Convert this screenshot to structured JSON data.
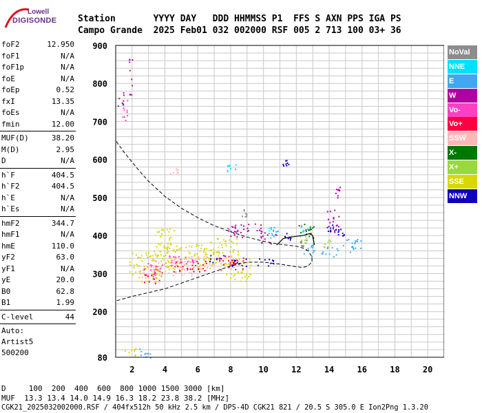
{
  "logo": {
    "line1": "Lowell",
    "line2": "DIGISONDE"
  },
  "header": {
    "row1": "Station       YYYY DAY   DDD HHMMSS P1  FFS S AXN PPS IGA PS",
    "row2": "Campo Grande  2025 Feb01 032 002000 RSF 005 2 713 100 03+ 36"
  },
  "params": [
    {
      "group": [
        [
          "foF2",
          "12.950"
        ],
        [
          "foF1",
          "N/A"
        ],
        [
          "foF1p",
          "N/A"
        ],
        [
          "foE",
          "N/A"
        ],
        [
          "foEp",
          "0.52"
        ],
        [
          "fxI",
          "13.35"
        ],
        [
          "foEs",
          "N/A"
        ],
        [
          "fmin",
          "12.00"
        ]
      ]
    },
    {
      "group": [
        [
          "MUF(D)",
          "38.20"
        ],
        [
          "M(D)",
          "2.95"
        ],
        [
          "D",
          "N/A"
        ]
      ]
    },
    {
      "group": [
        [
          "h`F",
          "404.5"
        ],
        [
          "h`F2",
          "404.5"
        ],
        [
          "h`E",
          "N/A"
        ],
        [
          "h`Es",
          "N/A"
        ]
      ]
    },
    {
      "group": [
        [
          "hmF2",
          "344.7"
        ],
        [
          "hmF1",
          "N/A"
        ],
        [
          "hmE",
          "110.0"
        ],
        [
          "yF2",
          "63.0"
        ],
        [
          "yF1",
          "N/A"
        ],
        [
          "yE",
          "20.0"
        ],
        [
          "B0",
          "62.8"
        ],
        [
          "B1",
          "1.99"
        ]
      ]
    },
    {
      "group": [
        [
          "C-level",
          "44"
        ]
      ]
    }
  ],
  "auto": [
    "Auto:",
    "Artist5",
    "500200"
  ],
  "legend": [
    {
      "label": "NoVal",
      "color": "#8c8c8c"
    },
    {
      "label": "NNE",
      "color": "#00e0ff"
    },
    {
      "label": "E",
      "color": "#3fa8f0"
    },
    {
      "label": "W",
      "color": "#b000a0"
    },
    {
      "label": "Vo-",
      "color": "#ff40c0"
    },
    {
      "label": "Vo+",
      "color": "#ff0040"
    },
    {
      "label": "SSW",
      "color": "#ffb8b8"
    },
    {
      "label": "X-",
      "color": "#007800"
    },
    {
      "label": "X+",
      "color": "#9ad840"
    },
    {
      "label": "SSE",
      "color": "#d8d800"
    },
    {
      "label": "NNW",
      "color": "#1000c0"
    }
  ],
  "footer": {
    "d_row": "D     100  200  400  600  800 1000 1500 3000 [km]",
    "muf_row": "MUF  13.3 13.4 14.0 14.9 16.3 18.2 23.8 38.2 [MHz]",
    "info_row": "CGK21_2025032002000.RSF / 404fx512h 50 kHz 2.5 km / DPS-4D CGK21 821 / 20.5 S 305.0 E Ion2Png 1.3.20"
  },
  "chart_data": {
    "type": "scatter",
    "xlabel": "",
    "ylabel": "",
    "xlim": [
      1,
      21
    ],
    "ylim": [
      80,
      900
    ],
    "x_ticks": [
      2,
      4,
      6,
      8,
      10,
      12,
      14,
      16,
      18,
      20
    ],
    "y_ticks": [
      80,
      200,
      300,
      400,
      500,
      600,
      700,
      800,
      900
    ],
    "grid": true,
    "profile_curve": {
      "style": "dashed",
      "x": [
        0.5,
        1.0,
        1.5,
        2.0,
        2.5,
        3.0,
        4.0,
        5.0,
        6.0,
        7.0,
        8.0,
        9.0,
        10.0,
        11.0,
        12.0,
        12.4,
        12.7,
        12.95,
        12.95,
        12.7,
        12.4,
        12.0,
        11.0,
        10.0,
        9.0,
        8.0,
        7.0,
        6.0,
        5.0,
        4.0,
        3.0,
        2.0,
        1.0,
        0.6
      ],
      "y": [
        705,
        650,
        620,
        593,
        567,
        543,
        503,
        472,
        447,
        426,
        410,
        396,
        385,
        377,
        372,
        367,
        360,
        345,
        330,
        320,
        316,
        318,
        325,
        330,
        330,
        320,
        305,
        290,
        275,
        260,
        250,
        240,
        228,
        222
      ]
    },
    "trace_curve": {
      "style": "solid",
      "x": [
        10.8,
        11.2,
        11.6,
        12.0,
        12.4,
        12.8,
        13.0,
        13.1
      ],
      "y": [
        375,
        392,
        396,
        398,
        400,
        405,
        400,
        375
      ]
    },
    "series": [
      {
        "name": "SSE",
        "color": "#d8d800",
        "clusters": [
          [
            3.0,
            320,
            1.2,
            40
          ],
          [
            4.0,
            380,
            0.6,
            40
          ],
          [
            5.5,
            345,
            1.5,
            35
          ],
          [
            7.5,
            360,
            1.0,
            35
          ],
          [
            8.5,
            310,
            0.8,
            30
          ],
          [
            1.8,
            95,
            0.4,
            10
          ]
        ]
      },
      {
        "name": "SSW",
        "color": "#ffb8b8",
        "clusters": [
          [
            3.0,
            300,
            0.7,
            25
          ],
          [
            4.5,
            320,
            1.4,
            25
          ],
          [
            6.0,
            330,
            1.0,
            20
          ],
          [
            4.5,
            570,
            0.3,
            8
          ]
        ]
      },
      {
        "name": "Vo+",
        "color": "#ff0040",
        "clusters": [
          [
            3.2,
            290,
            0.5,
            15
          ],
          [
            5.5,
            320,
            1.0,
            15
          ],
          [
            8.0,
            330,
            0.8,
            20
          ]
        ]
      },
      {
        "name": "Vo-",
        "color": "#ff40c0",
        "clusters": [
          [
            3.3,
            310,
            0.6,
            20
          ],
          [
            5.0,
            335,
            0.8,
            15
          ],
          [
            8.2,
            420,
            0.4,
            10
          ],
          [
            1.5,
            730,
            0.2,
            30
          ]
        ]
      },
      {
        "name": "W",
        "color": "#b000a0",
        "clusters": [
          [
            8.3,
            415,
            0.5,
            20
          ],
          [
            9.4,
            420,
            0.5,
            15
          ],
          [
            10.3,
            395,
            0.5,
            15
          ],
          [
            14.2,
            440,
            0.4,
            30
          ],
          [
            14.5,
            515,
            0.2,
            15
          ],
          [
            1.3,
            760,
            0.2,
            20
          ],
          [
            1.9,
            830,
            0.1,
            60
          ]
        ]
      },
      {
        "name": "NNW",
        "color": "#1000c0",
        "clusters": [
          [
            7.2,
            340,
            0.5,
            10
          ],
          [
            8.5,
            330,
            0.6,
            10
          ],
          [
            10.0,
            330,
            0.6,
            10
          ],
          [
            11.5,
            398,
            0.3,
            10
          ],
          [
            14.1,
            420,
            0.3,
            10
          ],
          [
            14.7,
            410,
            0.2,
            10
          ],
          [
            11.2,
            595,
            0.3,
            10
          ]
        ]
      },
      {
        "name": "E",
        "color": "#3fa8f0",
        "clusters": [
          [
            12.7,
            365,
            0.5,
            20
          ],
          [
            14.0,
            360,
            0.5,
            15
          ],
          [
            15.3,
            375,
            0.6,
            20
          ],
          [
            10.7,
            410,
            0.3,
            15
          ],
          [
            2.7,
            95,
            0.4,
            15
          ]
        ]
      },
      {
        "name": "NNE",
        "color": "#00e0ff",
        "clusters": [
          [
            10.5,
            415,
            0.3,
            10
          ],
          [
            8.0,
            580,
            0.3,
            10
          ],
          [
            12.5,
            420,
            0.3,
            10
          ]
        ]
      },
      {
        "name": "X-",
        "color": "#007800",
        "clusters": [
          [
            12.5,
            420,
            0.4,
            15
          ],
          [
            12.9,
            410,
            0.2,
            15
          ]
        ]
      },
      {
        "name": "X+",
        "color": "#9ad840",
        "clusters": [
          [
            12.4,
            390,
            0.3,
            10
          ],
          [
            13.8,
            380,
            0.3,
            10
          ]
        ]
      },
      {
        "name": "NoVal",
        "color": "#8c8c8c",
        "clusters": [
          [
            12.4,
            380,
            0.2,
            10
          ],
          [
            8.8,
            460,
            0.2,
            10
          ]
        ]
      }
    ]
  }
}
